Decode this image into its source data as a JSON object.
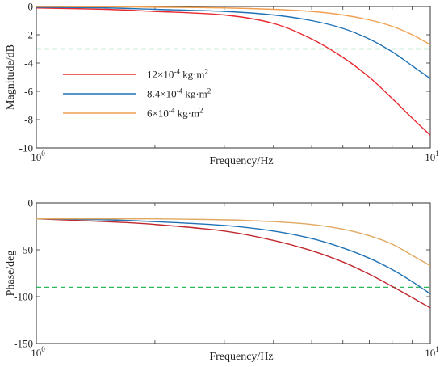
{
  "chart_data": [
    {
      "type": "line",
      "xscale": "log",
      "xlim": [
        1,
        10
      ],
      "ylim": [
        -10,
        0
      ],
      "yticks": [
        0,
        -2,
        -4,
        -6,
        -8,
        -10
      ],
      "ytick_labels": [
        "0",
        "-2",
        "-4",
        "-6",
        "-8",
        "-10"
      ],
      "xtick_labels": [
        "10^0",
        "10^1"
      ],
      "xlabel": "Frequency/Hz",
      "ylabel": "Magnitude/dB",
      "grid": false,
      "legend_position": "center-left",
      "reference_line": {
        "y": -3,
        "color": "#2eb85c",
        "style": "dashed"
      },
      "x": [
        1,
        1.5,
        2,
        3,
        4,
        5,
        6,
        7,
        8,
        9,
        10
      ],
      "series": [
        {
          "name": "12×10⁻⁴ kg·m²",
          "color": "#e8282e",
          "values": [
            -0.1,
            -0.2,
            -0.35,
            -0.6,
            -1.2,
            -2.3,
            -3.6,
            -5.0,
            -6.5,
            -7.9,
            -9.1
          ]
        },
        {
          "name": "8.4×10⁻⁴ kg·m²",
          "color": "#1f72b5",
          "values": [
            -0.05,
            -0.1,
            -0.2,
            -0.35,
            -0.6,
            -1.0,
            -1.55,
            -2.3,
            -3.2,
            -4.2,
            -5.1
          ]
        },
        {
          "name": "6×10⁻⁴ kg·m²",
          "color": "#f0a050",
          "values": [
            0,
            -0.02,
            -0.05,
            -0.1,
            -0.2,
            -0.35,
            -0.6,
            -0.95,
            -1.4,
            -2.0,
            -2.7
          ]
        }
      ]
    },
    {
      "type": "line",
      "xscale": "log",
      "xlim": [
        1,
        10
      ],
      "ylim": [
        -150,
        0
      ],
      "yticks": [
        0,
        -50,
        -100,
        -150
      ],
      "ytick_labels": [
        "0",
        "-50",
        "-100",
        "-150"
      ],
      "xtick_labels": [
        "10^0",
        "10^1"
      ],
      "xlabel": "Frequency/Hz",
      "ylabel": "Phase/deg",
      "grid": false,
      "reference_line": {
        "y": -90,
        "color": "#2eb85c",
        "style": "dashed"
      },
      "x": [
        1,
        1.5,
        2,
        3,
        4,
        5,
        6,
        7,
        8,
        9,
        10
      ],
      "series": [
        {
          "color": "#c0282e",
          "values": [
            -17,
            -20,
            -23,
            -30,
            -40,
            -51,
            -63,
            -76,
            -89,
            -101,
            -112
          ]
        },
        {
          "color": "#1f72b5",
          "values": [
            -17,
            -18,
            -20,
            -24,
            -30,
            -38,
            -48,
            -59,
            -71,
            -84,
            -97
          ]
        },
        {
          "color": "#e0a860",
          "values": [
            -17,
            -17,
            -17,
            -18,
            -20,
            -23,
            -28,
            -35,
            -44,
            -56,
            -67
          ]
        }
      ]
    }
  ]
}
